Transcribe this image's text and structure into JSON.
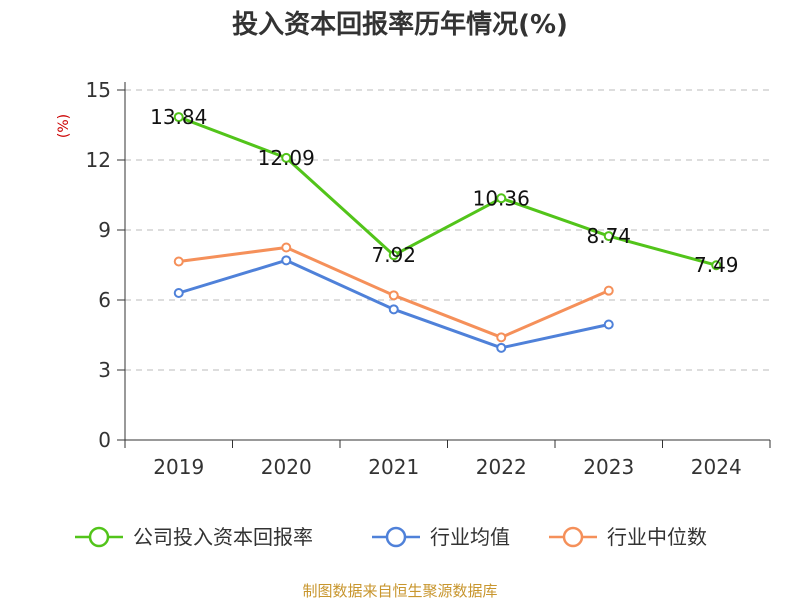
{
  "chart_data": {
    "type": "line",
    "title": "投入资本回报率历年情况(%)",
    "xlabel": "",
    "ylabel": "(%)",
    "categories": [
      "2019",
      "2020",
      "2021",
      "2022",
      "2023",
      "2024"
    ],
    "ylim": [
      0,
      15
    ],
    "yticks": [
      0,
      3,
      6,
      9,
      12,
      15
    ],
    "grid": true,
    "legend_position": "bottom",
    "series": [
      {
        "name": "公司投入资本回报率",
        "color": "#52c41a",
        "values": [
          13.84,
          12.09,
          7.92,
          10.36,
          8.74,
          7.49
        ],
        "data_labels": [
          "13.84",
          "12.09",
          "7.92",
          "10.36",
          "8.74",
          "7.49"
        ]
      },
      {
        "name": "行业均值",
        "color": "#4f81d9",
        "values": [
          6.3,
          7.7,
          5.6,
          3.95,
          4.95,
          null
        ]
      },
      {
        "name": "行业中位数",
        "color": "#f5905a",
        "values": [
          7.65,
          8.25,
          6.2,
          4.4,
          6.4,
          null
        ]
      }
    ]
  },
  "source": {
    "text": "制图数据来自恒生聚源数据库",
    "color": "#c8962e"
  },
  "ylabel_color": "#cc0000"
}
